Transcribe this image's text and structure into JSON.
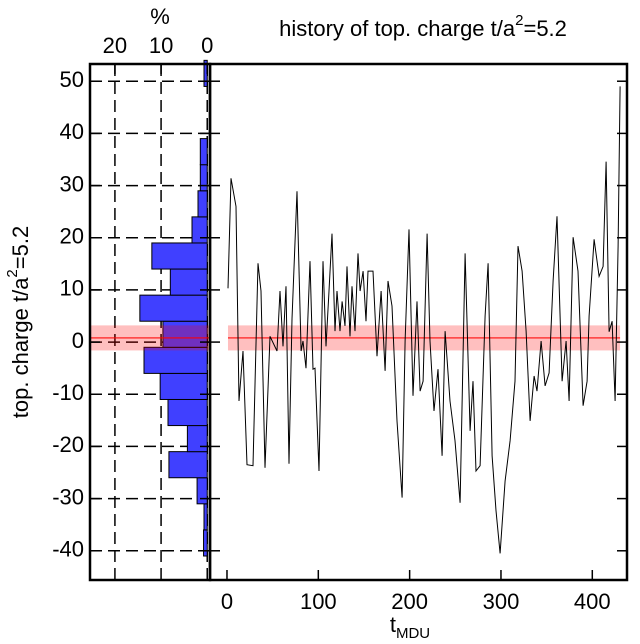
{
  "chart_data": {
    "type": "line",
    "title": [
      "history of top. charge t/a",
      "2",
      "=5.2"
    ],
    "ylabel": [
      "top. charge t/a",
      "2",
      "=5.2"
    ],
    "xlabel": [
      "t",
      "MDU"
    ],
    "ylim": [
      -45.6,
      53.3
    ],
    "yticks": [
      -40,
      -30,
      -20,
      -10,
      0,
      10,
      20,
      30,
      40,
      50
    ],
    "xlim": [
      -18.6,
      438
    ],
    "xticks": [
      0,
      100,
      200,
      300,
      400
    ],
    "color": "#000000",
    "x": [
      1.1,
      4.4,
      9.9,
      13.1,
      17.5,
      21.9,
      28.5,
      34,
      37.2,
      41.6,
      47.1,
      54.8,
      58.1,
      61.3,
      64.6,
      67.9,
      71.2,
      76.7,
      81.1,
      83.2,
      86.5,
      90.9,
      94.2,
      96.4,
      100.8,
      105.1,
      108.4,
      111.7,
      115,
      118.3,
      120.5,
      123.8,
      126,
      129.2,
      131.4,
      134.7,
      136.9,
      140.2,
      143.5,
      145.7,
      149,
      152.2,
      154.4,
      159.9,
      164.3,
      168.7,
      173.1,
      176.3,
      180.7,
      186.2,
      191.7,
      195,
      199.3,
      203.7,
      208.1,
      211.4,
      214.7,
      219.1,
      222.3,
      226.7,
      231.1,
      235.5,
      238.8,
      244.2,
      249.7,
      255.2,
      260.7,
      266.2,
      269.4,
      272.7,
      277.1,
      282.6,
      285.9,
      290.3,
      294.6,
      299,
      304.5,
      310,
      315.4,
      318.7,
      323.1,
      327.5,
      331.9,
      336.3,
      339.5,
      343.9,
      348.3,
      352.7,
      357.1,
      361.4,
      366.9,
      371.3,
      374.6,
      379,
      384.4,
      389.9,
      394.3,
      396.5,
      402,
      407.4,
      411.8,
      415.1,
      418.4,
      421.7,
      425,
      428.3,
      430.4
    ],
    "values": [
      10.3,
      31.4,
      26,
      -11.3,
      -1.7,
      -23.5,
      -23.7,
      15.1,
      9.8,
      -24.1,
      1.1,
      -1.7,
      9.8,
      -0.8,
      10.7,
      -23.3,
      4.4,
      28.9,
      -1.7,
      0.2,
      -5,
      15.5,
      -5.2,
      -5,
      -24.7,
      15.5,
      -0.8,
      9.8,
      20.8,
      2.1,
      9.8,
      2.1,
      7.8,
      3.1,
      14.5,
      1.1,
      10.7,
      2.1,
      17,
      9.8,
      13.6,
      4,
      13.6,
      13.6,
      -2.7,
      9.8,
      -5.5,
      11.7,
      6.9,
      -15.1,
      -29.8,
      0.2,
      21.6,
      -10.3,
      7.8,
      -9.4,
      -7.5,
      20.8,
      0.2,
      -13.2,
      -5.2,
      -21.8,
      2.1,
      -11.3,
      -18.9,
      -30.8,
      17,
      -17,
      -7.5,
      -24.7,
      -23.7,
      5,
      15.1,
      -21.8,
      -32.3,
      -40.5,
      -26.6,
      -18.9,
      -7.5,
      18.4,
      13.6,
      2.1,
      -15.1,
      -6.5,
      -9.4,
      0.2,
      -8.4,
      -5.9,
      11.7,
      24.1,
      -7.5,
      0.2,
      -11.3,
      20.1,
      13.6,
      -12.2,
      -7.5,
      5,
      19.7,
      12.6,
      14.5,
      34.6,
      2,
      4,
      -11.3,
      18.4,
      49
    ],
    "mean": 0.8,
    "error": 2.4,
    "band_color": "#ff0000",
    "histogram": {
      "xlabel": "%",
      "xlim": [
        25.4,
        -0.6
      ],
      "xticks": [
        20,
        10,
        0
      ],
      "grid": true,
      "color": "#4040ff",
      "bins": [
        -41,
        -36,
        -31,
        -26,
        -21,
        -16,
        -11,
        -6,
        -1,
        4,
        9,
        14,
        19,
        24,
        29,
        34,
        39,
        44,
        49,
        54
      ],
      "values": [
        0.8,
        0.7,
        2.2,
        8.3,
        4.3,
        8.5,
        10.2,
        13.7,
        9.6,
        14.6,
        8,
        12,
        3.3,
        2,
        1.5,
        1.5,
        0,
        0,
        0.7
      ]
    }
  }
}
